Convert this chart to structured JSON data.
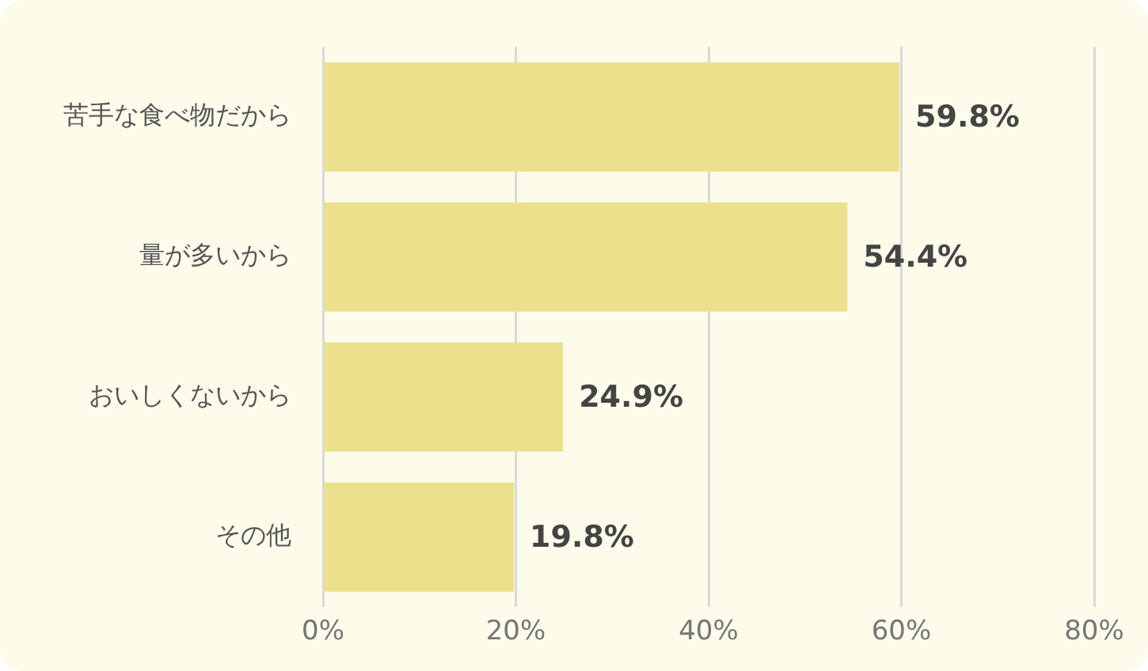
{
  "chart_data": {
    "type": "bar",
    "orientation": "horizontal",
    "categories": [
      "苦手な食べ物だから",
      "量が多いから",
      "おいしくないから",
      "その他"
    ],
    "values": [
      59.8,
      54.4,
      24.9,
      19.8
    ],
    "value_labels": [
      "59.8%",
      "54.4%",
      "24.9%",
      "19.8%"
    ],
    "color": "#ebe18c",
    "xlim": [
      0,
      80
    ],
    "xticks": [
      {
        "value": 0,
        "label": "0%"
      },
      {
        "value": 20,
        "label": "20%"
      },
      {
        "value": 40,
        "label": "40%"
      },
      {
        "value": 60,
        "label": "60%"
      },
      {
        "value": 80,
        "label": "80%"
      }
    ],
    "grid": "x",
    "legend": false
  }
}
